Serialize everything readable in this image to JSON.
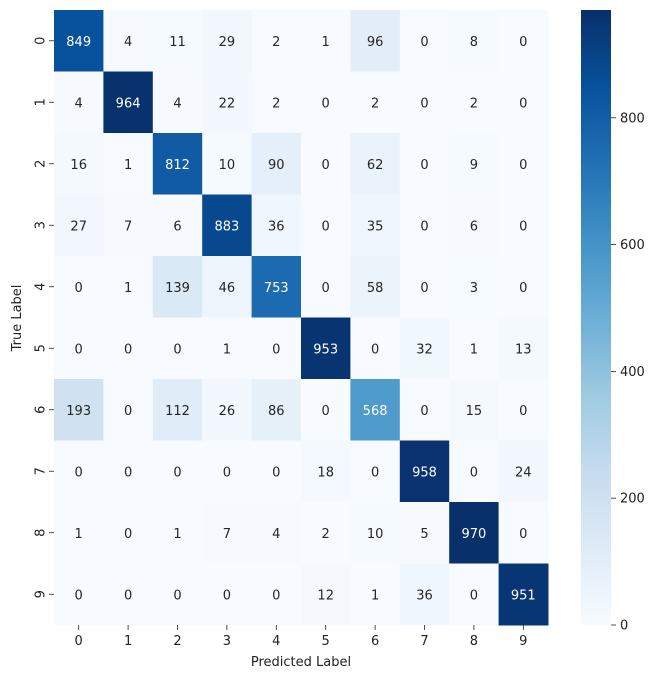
{
  "chart_data": {
    "type": "heatmap",
    "title": "",
    "xlabel": "Predicted Label",
    "ylabel": "True Label",
    "x_categories": [
      "0",
      "1",
      "2",
      "3",
      "4",
      "5",
      "6",
      "7",
      "8",
      "9"
    ],
    "y_categories": [
      "0",
      "1",
      "2",
      "3",
      "4",
      "5",
      "6",
      "7",
      "8",
      "9"
    ],
    "values": [
      [
        849,
        4,
        11,
        29,
        2,
        1,
        96,
        0,
        8,
        0
      ],
      [
        4,
        964,
        4,
        22,
        2,
        0,
        2,
        0,
        2,
        0
      ],
      [
        16,
        1,
        812,
        10,
        90,
        0,
        62,
        0,
        9,
        0
      ],
      [
        27,
        7,
        6,
        883,
        36,
        0,
        35,
        0,
        6,
        0
      ],
      [
        0,
        1,
        139,
        46,
        753,
        0,
        58,
        0,
        3,
        0
      ],
      [
        0,
        0,
        0,
        1,
        0,
        953,
        0,
        32,
        1,
        13
      ],
      [
        193,
        0,
        112,
        26,
        86,
        0,
        568,
        0,
        15,
        0
      ],
      [
        0,
        0,
        0,
        0,
        0,
        18,
        0,
        958,
        0,
        24
      ],
      [
        1,
        0,
        1,
        7,
        4,
        2,
        10,
        5,
        970,
        0
      ],
      [
        0,
        0,
        0,
        0,
        0,
        12,
        1,
        36,
        0,
        951
      ]
    ],
    "colormap": "Blues",
    "color_range": [
      0,
      970
    ],
    "colorbar_ticks": [
      0,
      200,
      400,
      600,
      800
    ],
    "annotations": true,
    "grid": false
  }
}
